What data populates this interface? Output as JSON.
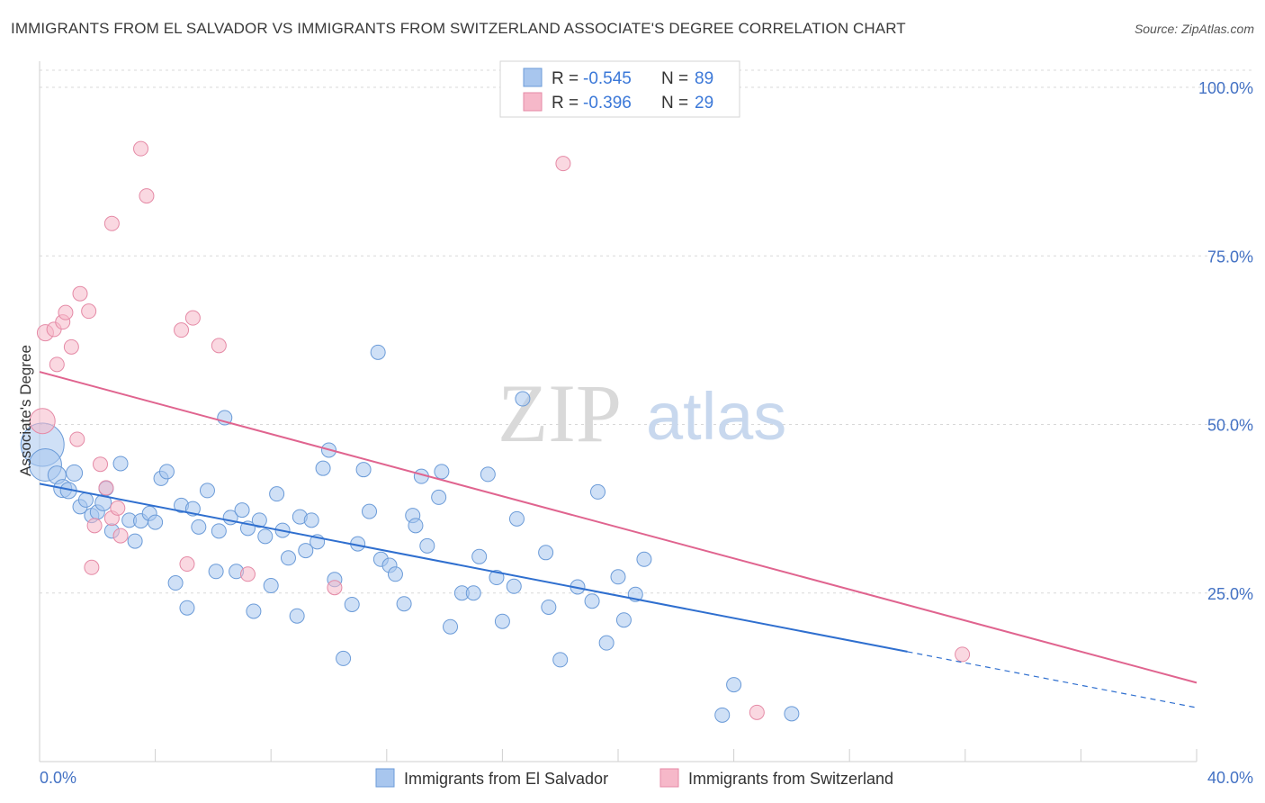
{
  "title": "IMMIGRANTS FROM EL SALVADOR VS IMMIGRANTS FROM SWITZERLAND ASSOCIATE'S DEGREE CORRELATION CHART",
  "source": "Source: ZipAtlas.com",
  "watermark": {
    "zip": "ZIP",
    "atlas": "atlas"
  },
  "colors": {
    "blue_fill": "#a8c6ee",
    "blue_stroke": "#6b9bd8",
    "blue_line": "#2f6fcf",
    "pink_fill": "#f6b8c9",
    "pink_stroke": "#e58aa6",
    "pink_line": "#e0648f",
    "grid": "#d8d8d8",
    "tick_label": "#4472c4"
  },
  "legend": {
    "rows": [
      {
        "r_label": "R = ",
        "r_value": "-0.545",
        "n_label": "N = ",
        "n_value": "89"
      },
      {
        "r_label": "R = ",
        "r_value": "-0.396",
        "n_label": "N = ",
        "n_value": "29"
      }
    ]
  },
  "chart_data": {
    "type": "scatter",
    "ylabel": "Associate's Degree",
    "xlim": [
      0,
      40
    ],
    "ylim": [
      0,
      105
    ],
    "x_tick_labels": [
      "0.0%",
      "40.0%"
    ],
    "y_ticks": [
      25,
      50,
      75,
      100
    ],
    "y_tick_labels": [
      "25.0%",
      "50.0%",
      "75.0%",
      "100.0%"
    ],
    "grid": true,
    "legend_position": "top-center",
    "series": [
      {
        "name": "Immigrants from El Salvador",
        "color": "#a8c6ee",
        "trend": {
          "x_solid": [
            0,
            30
          ],
          "y_solid": [
            41.2,
            16.3
          ],
          "x_dash": [
            30,
            40
          ],
          "y_dash": [
            16.3,
            8.0
          ]
        },
        "points": [
          [
            0.1,
            47.0,
            24
          ],
          [
            0.2,
            44.0,
            18
          ],
          [
            0.6,
            42.5,
            10
          ],
          [
            0.8,
            40.5,
            10
          ],
          [
            1.0,
            40.2,
            9
          ],
          [
            1.2,
            42.8,
            9
          ],
          [
            1.4,
            37.8,
            8
          ],
          [
            1.6,
            38.8,
            8
          ],
          [
            1.8,
            36.5,
            8
          ],
          [
            2.0,
            37.0,
            8
          ],
          [
            2.2,
            38.4,
            9
          ],
          [
            2.3,
            40.5,
            8
          ],
          [
            2.5,
            34.2,
            8
          ],
          [
            2.8,
            44.2,
            8
          ],
          [
            3.1,
            35.8,
            8
          ],
          [
            3.3,
            32.7,
            8
          ],
          [
            3.5,
            35.7,
            8
          ],
          [
            3.8,
            36.8,
            8
          ],
          [
            4.0,
            35.5,
            8
          ],
          [
            4.2,
            42.0,
            8
          ],
          [
            4.4,
            43.0,
            8
          ],
          [
            4.7,
            26.5,
            8
          ],
          [
            4.9,
            38.0,
            8
          ],
          [
            5.1,
            22.8,
            8
          ],
          [
            5.3,
            37.5,
            8
          ],
          [
            5.5,
            34.8,
            8
          ],
          [
            5.8,
            40.2,
            8
          ],
          [
            6.1,
            28.2,
            8
          ],
          [
            6.2,
            34.2,
            8
          ],
          [
            6.4,
            51.0,
            8
          ],
          [
            6.6,
            36.2,
            8
          ],
          [
            6.8,
            28.2,
            8
          ],
          [
            7.0,
            37.3,
            8
          ],
          [
            7.2,
            34.6,
            8
          ],
          [
            7.4,
            22.3,
            8
          ],
          [
            7.6,
            35.8,
            8
          ],
          [
            7.8,
            33.4,
            8
          ],
          [
            8.0,
            26.1,
            8
          ],
          [
            8.2,
            39.7,
            8
          ],
          [
            8.4,
            34.3,
            8
          ],
          [
            8.6,
            30.2,
            8
          ],
          [
            8.9,
            21.6,
            8
          ],
          [
            9.0,
            36.3,
            8
          ],
          [
            9.2,
            31.3,
            8
          ],
          [
            9.4,
            35.8,
            8
          ],
          [
            9.6,
            32.6,
            8
          ],
          [
            9.8,
            43.5,
            8
          ],
          [
            10.0,
            46.2,
            8
          ],
          [
            10.2,
            27.0,
            8
          ],
          [
            10.5,
            15.3,
            8
          ],
          [
            10.8,
            23.3,
            8
          ],
          [
            11.0,
            32.3,
            8
          ],
          [
            11.2,
            43.3,
            8
          ],
          [
            11.4,
            37.1,
            8
          ],
          [
            11.7,
            60.7,
            8
          ],
          [
            11.8,
            30.0,
            8
          ],
          [
            12.1,
            29.1,
            8
          ],
          [
            12.3,
            27.8,
            8
          ],
          [
            12.6,
            23.4,
            8
          ],
          [
            12.9,
            36.5,
            8
          ],
          [
            13.0,
            35.0,
            8
          ],
          [
            13.2,
            42.3,
            8
          ],
          [
            13.4,
            32.0,
            8
          ],
          [
            13.8,
            39.2,
            8
          ],
          [
            13.9,
            43.0,
            8
          ],
          [
            14.2,
            20.0,
            8
          ],
          [
            14.6,
            25.0,
            8
          ],
          [
            15.0,
            25.0,
            8
          ],
          [
            15.2,
            30.4,
            8
          ],
          [
            15.5,
            42.6,
            8
          ],
          [
            15.8,
            27.3,
            8
          ],
          [
            16.0,
            20.8,
            8
          ],
          [
            16.4,
            26.0,
            8
          ],
          [
            16.5,
            36.0,
            8
          ],
          [
            16.7,
            53.8,
            8
          ],
          [
            17.5,
            31.0,
            8
          ],
          [
            17.6,
            22.9,
            8
          ],
          [
            18.0,
            15.1,
            8
          ],
          [
            18.6,
            25.9,
            8
          ],
          [
            19.1,
            23.8,
            8
          ],
          [
            19.3,
            40.0,
            8
          ],
          [
            19.6,
            17.6,
            8
          ],
          [
            20.0,
            27.4,
            8
          ],
          [
            20.2,
            21.0,
            8
          ],
          [
            20.6,
            24.8,
            8
          ],
          [
            20.9,
            30.0,
            8
          ],
          [
            24.0,
            11.4,
            8
          ],
          [
            23.6,
            6.9,
            8
          ],
          [
            26.0,
            7.1,
            8
          ]
        ]
      },
      {
        "name": "Immigrants from Switzerland",
        "color": "#f6b8c9",
        "trend": {
          "x_solid": [
            0,
            40
          ],
          "y_solid": [
            57.8,
            11.7
          ]
        },
        "points": [
          [
            0.1,
            50.5,
            14
          ],
          [
            0.2,
            63.6,
            9
          ],
          [
            0.5,
            64.1,
            8
          ],
          [
            0.6,
            58.9,
            8
          ],
          [
            0.8,
            65.2,
            8
          ],
          [
            0.9,
            66.6,
            8
          ],
          [
            1.1,
            61.5,
            8
          ],
          [
            1.3,
            47.8,
            8
          ],
          [
            1.4,
            69.4,
            8
          ],
          [
            1.7,
            66.8,
            8
          ],
          [
            1.8,
            28.8,
            8
          ],
          [
            1.9,
            35.0,
            8
          ],
          [
            2.1,
            44.1,
            8
          ],
          [
            2.3,
            40.6,
            8
          ],
          [
            2.5,
            36.1,
            8
          ],
          [
            2.5,
            79.8,
            8
          ],
          [
            2.7,
            37.6,
            8
          ],
          [
            2.8,
            33.5,
            8
          ],
          [
            3.5,
            90.9,
            8
          ],
          [
            3.7,
            83.9,
            8
          ],
          [
            4.9,
            64.0,
            8
          ],
          [
            5.1,
            29.3,
            8
          ],
          [
            5.3,
            65.8,
            8
          ],
          [
            6.2,
            61.7,
            8
          ],
          [
            7.2,
            27.8,
            8
          ],
          [
            10.2,
            25.8,
            8
          ],
          [
            18.1,
            88.7,
            8
          ],
          [
            24.8,
            7.3,
            8
          ],
          [
            31.9,
            15.9,
            8
          ]
        ]
      }
    ]
  }
}
